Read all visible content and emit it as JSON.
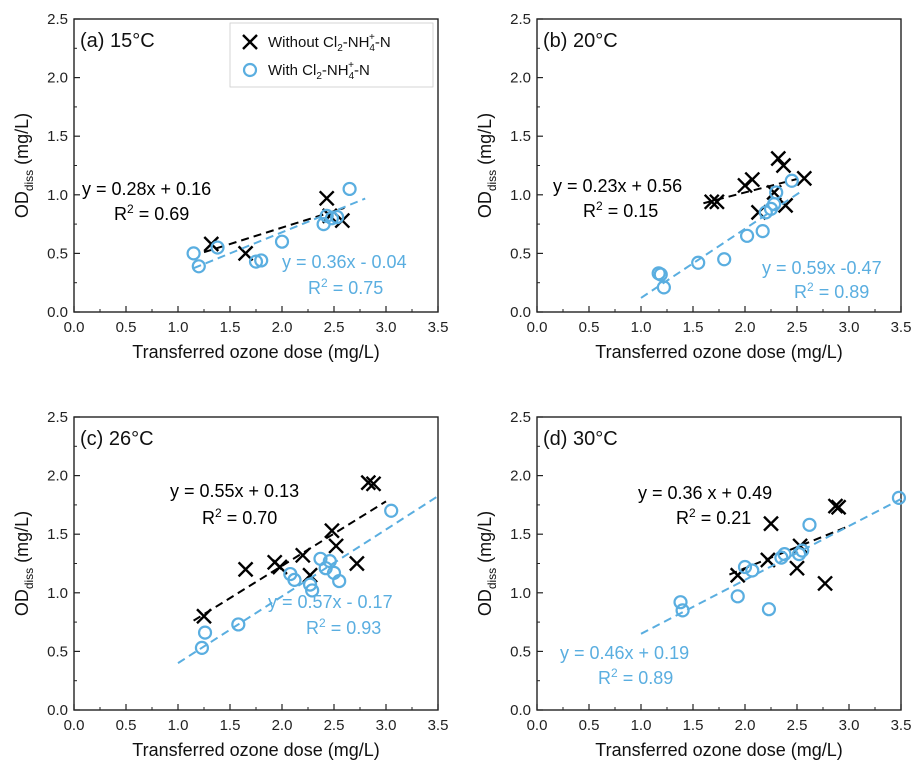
{
  "colors": {
    "without": "#000000",
    "with": "#5aaee0",
    "axis": "#222222"
  },
  "legend": {
    "without_label": "Without Cl",
    "with_label": "With Cl",
    "suffix": "-NH",
    "suffix_end": "-N",
    "sub2": "2",
    "sub4": "4",
    "sup_plus": "+"
  },
  "chart_data": [
    {
      "type": "scatter",
      "panel_label": "(a) 15°C",
      "xlabel": "Transferred ozone dose (mg/L)",
      "ylabel_main": "OD",
      "ylabel_sub": "diss",
      "ylabel_unit": " (mg/L)",
      "xlim": [
        0,
        3.5
      ],
      "ylim": [
        0,
        2.5
      ],
      "xticks": [
        "0.0",
        "0.5",
        "1.0",
        "1.5",
        "2.0",
        "2.5",
        "3.0",
        "3.5"
      ],
      "yticks": [
        "0.0",
        "0.5",
        "1.0",
        "1.5",
        "2.0",
        "2.5"
      ],
      "series": [
        {
          "key": "without",
          "marker": "x",
          "x": [
            1.32,
            1.65,
            2.43,
            2.46,
            2.58
          ],
          "y": [
            0.58,
            0.5,
            0.97,
            0.82,
            0.78
          ],
          "fit": {
            "slope": 0.28,
            "intercept": 0.16,
            "x_range": [
              1.25,
              2.6
            ]
          },
          "equation": "y = 0.28x + 0.16",
          "r2_value": " = 0.69"
        },
        {
          "key": "with",
          "marker": "o",
          "x": [
            1.15,
            1.2,
            1.38,
            1.75,
            1.8,
            2.0,
            2.4,
            2.43,
            2.48,
            2.53,
            2.65
          ],
          "y": [
            0.5,
            0.39,
            0.55,
            0.43,
            0.44,
            0.6,
            0.75,
            0.82,
            0.8,
            0.81,
            1.05
          ],
          "fit": {
            "slope": 0.36,
            "intercept": -0.04,
            "x_range": [
              1.15,
              2.8
            ]
          },
          "equation": "y = 0.36x - 0.04",
          "r2_value": " = 0.75"
        }
      ]
    },
    {
      "type": "scatter",
      "panel_label": "(b) 20°C",
      "xlabel": "Transferred ozone dose (mg/L)",
      "ylabel_main": "OD",
      "ylabel_sub": "diss",
      "ylabel_unit": " (mg/L)",
      "xlim": [
        0,
        3.5
      ],
      "ylim": [
        0,
        2.5
      ],
      "xticks": [
        "0.0",
        "0.5",
        "1.0",
        "1.5",
        "2.0",
        "2.5",
        "3.0",
        "3.5"
      ],
      "yticks": [
        "0.0",
        "0.5",
        "1.0",
        "1.5",
        "2.0",
        "2.5"
      ],
      "series": [
        {
          "key": "without",
          "marker": "x",
          "x": [
            1.68,
            1.73,
            2.0,
            2.07,
            2.13,
            2.28,
            2.32,
            2.37,
            2.39,
            2.57
          ],
          "y": [
            0.94,
            0.94,
            1.08,
            1.13,
            0.85,
            1.02,
            1.31,
            1.25,
            0.91,
            1.14
          ],
          "fit": {
            "slope": 0.23,
            "intercept": 0.56,
            "x_range": [
              1.6,
              2.5
            ]
          },
          "equation": "y = 0.23x + 0.56",
          "r2_value": " = 0.15"
        },
        {
          "key": "with",
          "marker": "o",
          "x": [
            1.17,
            1.19,
            1.22,
            1.55,
            1.8,
            2.02,
            2.17,
            2.2,
            2.25,
            2.28,
            2.3,
            2.45
          ],
          "y": [
            0.33,
            0.32,
            0.21,
            0.42,
            0.45,
            0.65,
            0.69,
            0.85,
            0.88,
            0.92,
            1.02,
            1.12
          ],
          "fit": {
            "slope": 0.59,
            "intercept": -0.47,
            "x_range": [
              1.0,
              2.55
            ]
          },
          "equation": "y = 0.59x -0.47",
          "r2_value": " = 0.89"
        }
      ]
    },
    {
      "type": "scatter",
      "panel_label": "(c) 26°C",
      "xlabel": "Transferred ozone dose (mg/L)",
      "ylabel_main": "OD",
      "ylabel_sub": "diss",
      "ylabel_unit": " (mg/L)",
      "xlim": [
        0,
        3.5
      ],
      "ylim": [
        0,
        2.5
      ],
      "xticks": [
        "0.0",
        "0.5",
        "1.0",
        "1.5",
        "2.0",
        "2.5",
        "3.0",
        "3.5"
      ],
      "yticks": [
        "0.0",
        "0.5",
        "1.0",
        "1.5",
        "2.0",
        "2.5"
      ],
      "series": [
        {
          "key": "without",
          "marker": "x",
          "x": [
            1.25,
            1.65,
            1.93,
            1.98,
            2.2,
            2.27,
            2.48,
            2.52,
            2.72,
            2.83,
            2.88
          ],
          "y": [
            0.8,
            1.2,
            1.26,
            1.22,
            1.32,
            1.15,
            1.53,
            1.4,
            1.25,
            1.94,
            1.93
          ],
          "fit": {
            "slope": 0.55,
            "intercept": 0.13,
            "x_range": [
              1.15,
              3.0
            ]
          },
          "equation": "y = 0.55x + 0.13",
          "r2_value": " = 0.70"
        },
        {
          "key": "with",
          "marker": "o",
          "x": [
            1.23,
            1.26,
            1.58,
            2.08,
            2.12,
            2.27,
            2.29,
            2.37,
            2.42,
            2.46,
            2.5,
            2.55,
            3.05
          ],
          "y": [
            0.53,
            0.66,
            0.73,
            1.16,
            1.11,
            1.07,
            1.02,
            1.29,
            1.21,
            1.27,
            1.17,
            1.1,
            1.7
          ],
          "fit": {
            "slope": 0.57,
            "intercept": -0.17,
            "x_range": [
              1.0,
              3.5
            ]
          },
          "equation": "y = 0.57x - 0.17",
          "r2_value": " = 0.93"
        }
      ]
    },
    {
      "type": "scatter",
      "panel_label": "(d) 30°C",
      "xlabel": "Transferred ozone dose (mg/L)",
      "ylabel_main": "OD",
      "ylabel_sub": "diss",
      "ylabel_unit": " (mg/L)",
      "xlim": [
        0,
        3.5
      ],
      "ylim": [
        0,
        2.5
      ],
      "xticks": [
        "0.0",
        "0.5",
        "1.0",
        "1.5",
        "2.0",
        "2.5",
        "3.0",
        "3.5"
      ],
      "yticks": [
        "0.0",
        "0.5",
        "1.0",
        "1.5",
        "2.0",
        "2.5"
      ],
      "series": [
        {
          "key": "without",
          "marker": "x",
          "x": [
            1.93,
            2.22,
            2.25,
            2.5,
            2.53,
            2.77,
            2.87,
            2.9
          ],
          "y": [
            1.15,
            1.28,
            1.59,
            1.21,
            1.4,
            1.08,
            1.74,
            1.73
          ],
          "fit": {
            "slope": 0.36,
            "intercept": 0.49,
            "x_range": [
              1.85,
              3.0
            ]
          },
          "equation": "y = 0.36 x + 0.49",
          "r2_value": " = 0.21"
        },
        {
          "key": "with",
          "marker": "o",
          "x": [
            1.38,
            1.4,
            1.93,
            2.0,
            2.07,
            2.23,
            2.35,
            2.38,
            2.52,
            2.55,
            2.62,
            3.48
          ],
          "y": [
            0.92,
            0.85,
            0.97,
            1.22,
            1.19,
            0.86,
            1.3,
            1.33,
            1.33,
            1.36,
            1.58,
            1.81
          ],
          "fit": {
            "slope": 0.46,
            "intercept": 0.19,
            "x_range": [
              1.0,
              3.5
            ]
          },
          "equation": "y = 0.46x + 0.19",
          "r2_value": " = 0.89"
        }
      ]
    }
  ]
}
